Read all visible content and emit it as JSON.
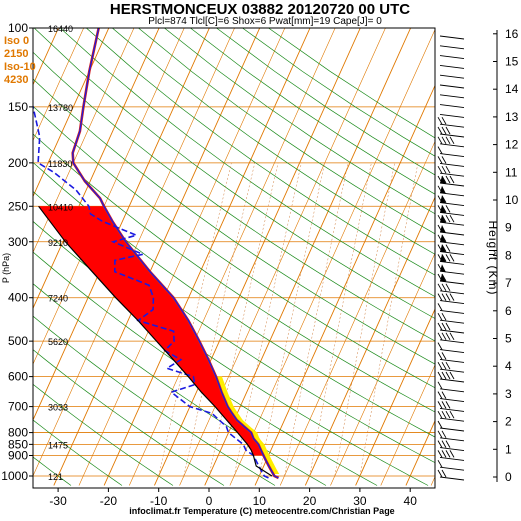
{
  "title": "HERSTMONCEUX 03882 20120720 00 UTC",
  "subtitle": "Plcl=874 Tlcl[C]=6 Shox=6 Pwat[mm]=19 Cape[J]= 0",
  "footer": "infoclimat.fr Temperature (C) meteocentre.com/Christian Page",
  "iso_info": [
    "Iso 0",
    "2150",
    "Iso-10",
    "4230"
  ],
  "y_axis_label": "P (hPa)",
  "right_axis_label": "Height (Km)",
  "colors": {
    "temperature": "#d42020",
    "dewpoint": "#1a1ae0",
    "parcel": "#000000",
    "cape_fill": "#ff0000",
    "cin_fill": "#ffee00",
    "isotherm": "#e07800",
    "dry_adiabat": "#1a8a1a",
    "isobar": "#e07800"
  },
  "chart_data": {
    "type": "line",
    "title": "HERSTMONCEUX 03882 20120720 00 UTC",
    "xlabel": "Temperature (C)",
    "ylabel": "P (hPa)",
    "xlim": [
      -33,
      47
    ],
    "ylim": [
      1050,
      100
    ],
    "y_scale": "log",
    "x_ticks": [
      "-30",
      "-20",
      "-10",
      "0",
      "10",
      "20",
      "30",
      "40"
    ],
    "y_ticks": [
      "100",
      "150",
      "200",
      "250",
      "300",
      "400",
      "500",
      "600",
      "700",
      "800",
      "850",
      "900",
      "1000"
    ],
    "height_ticks": [
      "0",
      "1",
      "2",
      "3",
      "4",
      "5",
      "6",
      "7",
      "8",
      "9",
      "10",
      "11",
      "12",
      "13",
      "14",
      "15",
      "16"
    ],
    "altitude_labels": [
      {
        "p": 100,
        "text": "16440"
      },
      {
        "p": 150,
        "text": "13780"
      },
      {
        "p": 200,
        "text": "11830"
      },
      {
        "p": 250,
        "text": "10410"
      },
      {
        "p": 300,
        "text": "9210"
      },
      {
        "p": 400,
        "text": "7240"
      },
      {
        "p": 500,
        "text": "5620"
      },
      {
        "p": 700,
        "text": "3033"
      },
      {
        "p": 850,
        "text": "1475"
      },
      {
        "p": 1000,
        "text": "121"
      }
    ],
    "series": [
      {
        "name": "temperature",
        "points": [
          [
            1010,
            14
          ],
          [
            1000,
            13
          ],
          [
            975,
            12
          ],
          [
            950,
            11
          ],
          [
            925,
            10
          ],
          [
            900,
            9
          ],
          [
            875,
            8
          ],
          [
            850,
            7
          ],
          [
            825,
            5.5
          ],
          [
            800,
            4.5
          ],
          [
            775,
            2.5
          ],
          [
            750,
            0.5
          ],
          [
            725,
            -1
          ],
          [
            700,
            -2.5
          ],
          [
            650,
            -5
          ],
          [
            600,
            -7.5
          ],
          [
            550,
            -10.5
          ],
          [
            500,
            -14
          ],
          [
            450,
            -18
          ],
          [
            400,
            -23
          ],
          [
            350,
            -30
          ],
          [
            300,
            -37.5
          ],
          [
            270,
            -42
          ],
          [
            250,
            -45
          ],
          [
            240,
            -46.5
          ],
          [
            220,
            -51
          ],
          [
            200,
            -55
          ],
          [
            190,
            -56
          ],
          [
            170,
            -56.5
          ],
          [
            150,
            -58
          ],
          [
            125,
            -60
          ],
          [
            100,
            -62
          ]
        ]
      },
      {
        "name": "dewpoint",
        "points": [
          [
            1010,
            12
          ],
          [
            1000,
            11
          ],
          [
            975,
            10
          ],
          [
            950,
            9
          ],
          [
            925,
            8
          ],
          [
            900,
            7
          ],
          [
            875,
            5
          ],
          [
            850,
            4
          ],
          [
            825,
            2
          ],
          [
            800,
            0
          ],
          [
            775,
            -1
          ],
          [
            750,
            -3
          ],
          [
            725,
            -5
          ],
          [
            700,
            -10
          ],
          [
            650,
            -15
          ],
          [
            625,
            -11
          ],
          [
            600,
            -12
          ],
          [
            575,
            -18
          ],
          [
            550,
            -16
          ],
          [
            525,
            -20
          ],
          [
            500,
            -19
          ],
          [
            475,
            -20
          ],
          [
            450,
            -28
          ],
          [
            425,
            -26
          ],
          [
            400,
            -27
          ],
          [
            375,
            -29
          ],
          [
            350,
            -37
          ],
          [
            330,
            -38
          ],
          [
            320,
            -33
          ],
          [
            300,
            -40
          ],
          [
            290,
            -36
          ],
          [
            270,
            -44
          ],
          [
            260,
            -47
          ],
          [
            250,
            -48
          ],
          [
            230,
            -52
          ],
          [
            210,
            -58
          ],
          [
            200,
            -62
          ],
          [
            175,
            -64
          ],
          [
            150,
            -68
          ],
          [
            125,
            -74
          ],
          [
            100,
            -79
          ]
        ]
      },
      {
        "name": "parcel",
        "points": [
          [
            1000,
            12.5
          ],
          [
            950,
            8.5
          ],
          [
            900,
            7
          ],
          [
            874,
            6
          ],
          [
            850,
            4.8
          ],
          [
            800,
            1.8
          ],
          [
            750,
            -1.5
          ],
          [
            700,
            -5
          ],
          [
            650,
            -9
          ],
          [
            600,
            -13
          ],
          [
            550,
            -17.5
          ],
          [
            500,
            -22.5
          ],
          [
            450,
            -28
          ],
          [
            400,
            -34.5
          ],
          [
            350,
            -41.5
          ],
          [
            300,
            -49.5
          ],
          [
            250,
            -58
          ]
        ]
      }
    ]
  }
}
